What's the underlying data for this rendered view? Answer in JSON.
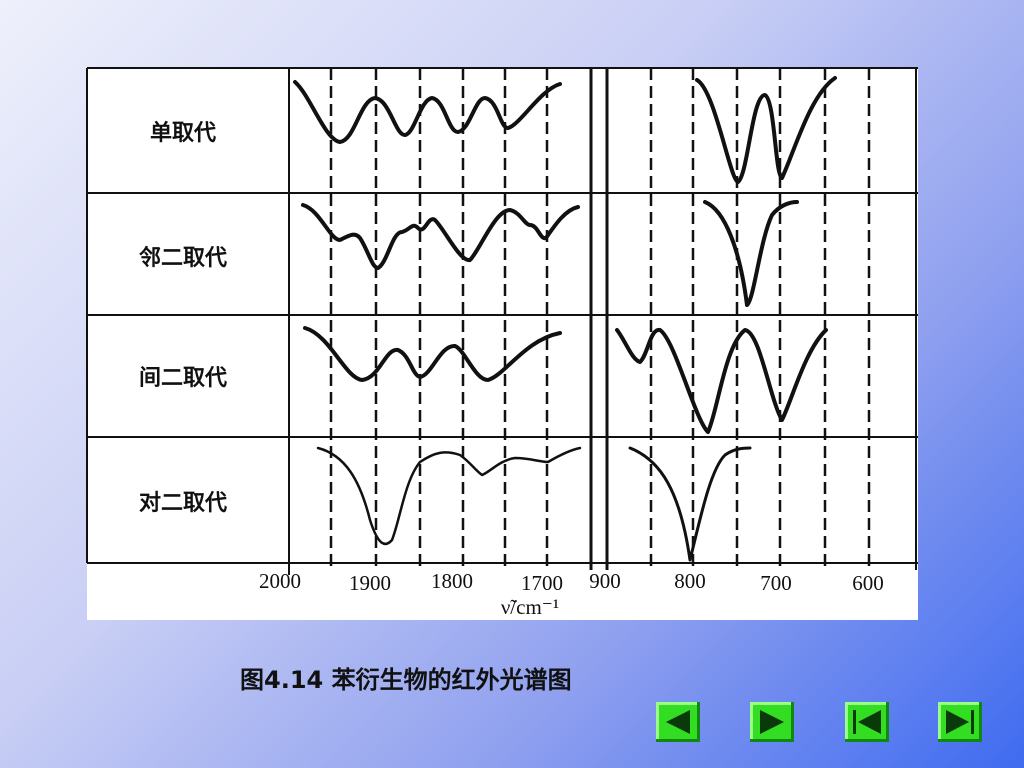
{
  "figure": {
    "row_labels": [
      "单取代",
      "邻二取代",
      "间二取代",
      "对二取代"
    ],
    "x_ticks_left": [
      "2000",
      "1900",
      "1800",
      "1700"
    ],
    "x_ticks_right": [
      "900",
      "800",
      "700",
      "600"
    ],
    "axis_label": "ν̃/cm⁻¹"
  },
  "caption": "图4.14 苯衍生物的红外光谱图"
}
